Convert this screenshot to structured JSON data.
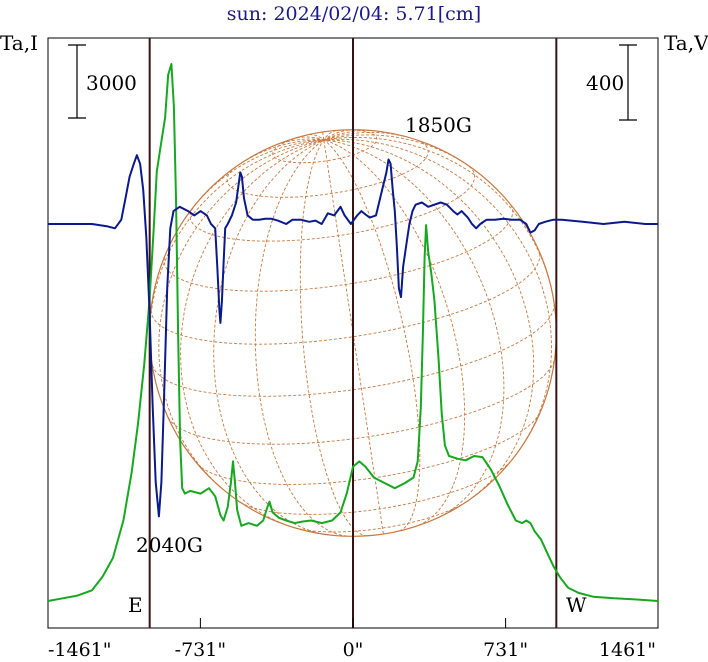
{
  "chart_data": {
    "type": "line",
    "title": "sun: 2024/02/04: 5.71[cm]",
    "ylabel_left": "Ta,I",
    "ylabel_right": "Ta,V",
    "scale_left": "3000",
    "scale_right": "400",
    "x_ticks": [
      {
        "value": -1461,
        "label": "-1461\""
      },
      {
        "value": -731,
        "label": "-731\""
      },
      {
        "value": 0,
        "label": "0\""
      },
      {
        "value": 731,
        "label": "731\""
      },
      {
        "value": 1461,
        "label": "1461\""
      }
    ],
    "xlim": [
      -1461,
      1461
    ],
    "limb_markers": [
      {
        "x": -974,
        "label": "E"
      },
      {
        "x": 974,
        "label": "W"
      }
    ],
    "center_line_x": 0,
    "sun_disk": {
      "radius_arcsec": 974,
      "center_x": 0
    },
    "annotations": [
      {
        "text": "1850G",
        "x": 560
      },
      {
        "text": "2040G",
        "x": -883
      }
    ],
    "colors": {
      "intensity": "#16a81e",
      "polarization": "#0a1a8c",
      "grid": "#c87941",
      "limb": "#3a1212",
      "title": "#1a1a8c"
    },
    "series": [
      {
        "key": "intensity",
        "points": [
          [
            -1461,
            0.0
          ],
          [
            -1390,
            0.005
          ],
          [
            -1320,
            0.01
          ],
          [
            -1250,
            0.02
          ],
          [
            -1200,
            0.045
          ],
          [
            -1150,
            0.08
          ],
          [
            -1100,
            0.15
          ],
          [
            -1060,
            0.24
          ],
          [
            -1030,
            0.33
          ],
          [
            -1000,
            0.44
          ],
          [
            -975,
            0.56
          ],
          [
            -955,
            0.69
          ],
          [
            -940,
            0.8
          ],
          [
            -920,
            0.85
          ],
          [
            -900,
            0.9
          ],
          [
            -885,
            0.98
          ],
          [
            -870,
            1.0
          ],
          [
            -858,
            0.92
          ],
          [
            -848,
            0.75
          ],
          [
            -838,
            0.5
          ],
          [
            -828,
            0.3
          ],
          [
            -818,
            0.21
          ],
          [
            -805,
            0.2
          ],
          [
            -780,
            0.205
          ],
          [
            -730,
            0.2
          ],
          [
            -690,
            0.21
          ],
          [
            -660,
            0.195
          ],
          [
            -635,
            0.16
          ],
          [
            -620,
            0.15
          ],
          [
            -600,
            0.175
          ],
          [
            -585,
            0.22
          ],
          [
            -575,
            0.26
          ],
          [
            -565,
            0.22
          ],
          [
            -555,
            0.17
          ],
          [
            -535,
            0.14
          ],
          [
            -500,
            0.145
          ],
          [
            -460,
            0.14
          ],
          [
            -430,
            0.15
          ],
          [
            -410,
            0.175
          ],
          [
            -400,
            0.185
          ],
          [
            -385,
            0.165
          ],
          [
            -355,
            0.155
          ],
          [
            -320,
            0.15
          ],
          [
            -280,
            0.145
          ],
          [
            -240,
            0.148
          ],
          [
            -200,
            0.15
          ],
          [
            -150,
            0.145
          ],
          [
            -100,
            0.15
          ],
          [
            -60,
            0.165
          ],
          [
            -30,
            0.2
          ],
          [
            0,
            0.25
          ],
          [
            30,
            0.26
          ],
          [
            60,
            0.25
          ],
          [
            100,
            0.23
          ],
          [
            150,
            0.22
          ],
          [
            200,
            0.21
          ],
          [
            250,
            0.22
          ],
          [
            290,
            0.23
          ],
          [
            310,
            0.26
          ],
          [
            325,
            0.36
          ],
          [
            335,
            0.5
          ],
          [
            343,
            0.64
          ],
          [
            350,
            0.7
          ],
          [
            360,
            0.65
          ],
          [
            375,
            0.61
          ],
          [
            390,
            0.56
          ],
          [
            410,
            0.45
          ],
          [
            425,
            0.35
          ],
          [
            440,
            0.29
          ],
          [
            460,
            0.27
          ],
          [
            500,
            0.265
          ],
          [
            540,
            0.262
          ],
          [
            580,
            0.27
          ],
          [
            620,
            0.268
          ],
          [
            660,
            0.245
          ],
          [
            700,
            0.215
          ],
          [
            740,
            0.18
          ],
          [
            780,
            0.15
          ],
          [
            810,
            0.145
          ],
          [
            830,
            0.15
          ],
          [
            850,
            0.145
          ],
          [
            870,
            0.13
          ],
          [
            900,
            0.115
          ],
          [
            930,
            0.09
          ],
          [
            960,
            0.065
          ],
          [
            990,
            0.045
          ],
          [
            1030,
            0.025
          ],
          [
            1080,
            0.015
          ],
          [
            1150,
            0.008
          ],
          [
            1250,
            0.005
          ],
          [
            1350,
            0.003
          ],
          [
            1461,
            0.0
          ]
        ]
      },
      {
        "key": "polarization",
        "points": [
          [
            -1461,
            0.0
          ],
          [
            -1350,
            0.0
          ],
          [
            -1250,
            0.0
          ],
          [
            -1180,
            -0.005
          ],
          [
            -1140,
            -0.01
          ],
          [
            -1110,
            0.01
          ],
          [
            -1090,
            0.06
          ],
          [
            -1070,
            0.11
          ],
          [
            -1050,
            0.14
          ],
          [
            -1035,
            0.16
          ],
          [
            -1020,
            0.14
          ],
          [
            -1005,
            0.08
          ],
          [
            -990,
            -0.03
          ],
          [
            -975,
            -0.2
          ],
          [
            -960,
            -0.42
          ],
          [
            -945,
            -0.6
          ],
          [
            -930,
            -0.68
          ],
          [
            -918,
            -0.6
          ],
          [
            -905,
            -0.4
          ],
          [
            -890,
            -0.15
          ],
          [
            -875,
            -0.01
          ],
          [
            -860,
            0.03
          ],
          [
            -830,
            0.04
          ],
          [
            -790,
            0.03
          ],
          [
            -760,
            0.02
          ],
          [
            -730,
            0.03
          ],
          [
            -700,
            0.02
          ],
          [
            -680,
            0.0
          ],
          [
            -660,
            -0.01
          ],
          [
            -650,
            -0.1
          ],
          [
            -640,
            -0.2
          ],
          [
            -635,
            -0.23
          ],
          [
            -628,
            -0.18
          ],
          [
            -620,
            -0.09
          ],
          [
            -612,
            -0.01
          ],
          [
            -600,
            0.0
          ],
          [
            -580,
            0.02
          ],
          [
            -560,
            0.05
          ],
          [
            -550,
            0.085
          ],
          [
            -540,
            0.12
          ],
          [
            -532,
            0.11
          ],
          [
            -522,
            0.06
          ],
          [
            -505,
            0.02
          ],
          [
            -480,
            0.01
          ],
          [
            -450,
            0.01
          ],
          [
            -420,
            0.012
          ],
          [
            -390,
            0.012
          ],
          [
            -360,
            0.008
          ],
          [
            -320,
            0.0
          ],
          [
            -290,
            0.01
          ],
          [
            -250,
            0.01
          ],
          [
            -210,
            0.005
          ],
          [
            -180,
            0.008
          ],
          [
            -150,
            0.0
          ],
          [
            -120,
            0.025
          ],
          [
            -90,
            0.02
          ],
          [
            -60,
            0.04
          ],
          [
            -40,
            0.02
          ],
          [
            -10,
            0.0
          ],
          [
            20,
            0.02
          ],
          [
            40,
            0.03
          ],
          [
            60,
            0.022
          ],
          [
            80,
            0.015
          ],
          [
            110,
            0.02
          ],
          [
            140,
            0.08
          ],
          [
            160,
            0.12
          ],
          [
            170,
            0.15
          ],
          [
            180,
            0.14
          ],
          [
            190,
            0.08
          ],
          [
            200,
            0.03
          ],
          [
            210,
            -0.05
          ],
          [
            220,
            -0.15
          ],
          [
            230,
            -0.17
          ],
          [
            240,
            -0.1
          ],
          [
            255,
            -0.05
          ],
          [
            270,
            0.0
          ],
          [
            285,
            0.03
          ],
          [
            300,
            0.045
          ],
          [
            330,
            0.05
          ],
          [
            360,
            0.04
          ],
          [
            390,
            0.045
          ],
          [
            420,
            0.05
          ],
          [
            450,
            0.045
          ],
          [
            480,
            0.03
          ],
          [
            500,
            0.022
          ],
          [
            520,
            0.03
          ],
          [
            550,
            0.015
          ],
          [
            570,
            0.0
          ],
          [
            590,
            -0.01
          ],
          [
            610,
            0.0
          ],
          [
            640,
            0.01
          ],
          [
            680,
            0.01
          ],
          [
            720,
            0.012
          ],
          [
            760,
            0.01
          ],
          [
            800,
            0.01
          ],
          [
            830,
            0.0
          ],
          [
            850,
            -0.02
          ],
          [
            870,
            -0.015
          ],
          [
            890,
            0.0
          ],
          [
            920,
            0.005
          ],
          [
            960,
            0.01
          ],
          [
            1000,
            0.01
          ],
          [
            1100,
            0.005
          ],
          [
            1200,
            0.0
          ],
          [
            1300,
            0.005
          ],
          [
            1400,
            0.0
          ],
          [
            1461,
            0.0
          ]
        ]
      }
    ]
  }
}
